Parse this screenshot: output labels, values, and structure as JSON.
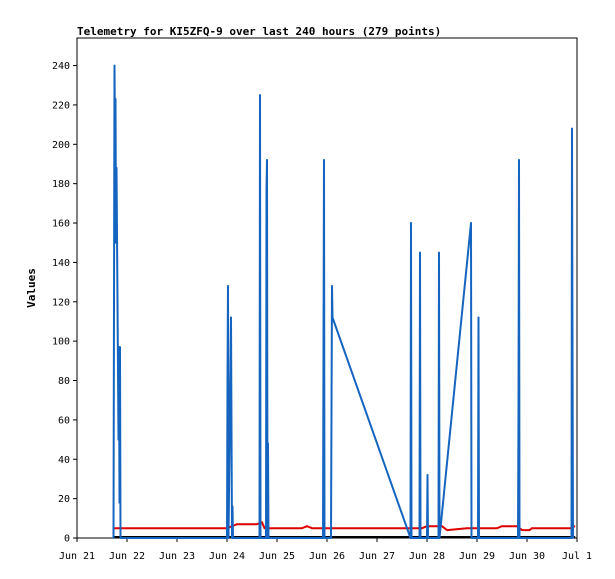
{
  "chart_data": {
    "type": "line",
    "title": "Telemetry for KI5ZFQ-9 over last 240 hours (279 points)",
    "ylabel": "Values",
    "xlabel": "",
    "x_tick_labels": [
      "Jun 21",
      "Jun 22",
      "Jun 23",
      "Jun 24",
      "Jun 25",
      "Jun 26",
      "Jun 27",
      "Jun 28",
      "Jun 29",
      "Jun 30",
      "Jul 1"
    ],
    "y_ticks": [
      0,
      20,
      40,
      60,
      80,
      100,
      120,
      140,
      160,
      180,
      200,
      220,
      240
    ],
    "xlim": [
      0,
      10
    ],
    "ylim": [
      0,
      254
    ],
    "grid": false,
    "colors": {
      "blue_series": "#1565c0",
      "red_series": "#dd0000",
      "black_series": "#000000"
    },
    "series": [
      {
        "color": "#1565c0",
        "points": [
          [
            0.73,
            0
          ],
          [
            0.74,
            120
          ],
          [
            0.75,
            240
          ],
          [
            0.76,
            200
          ],
          [
            0.77,
            223
          ],
          [
            0.78,
            150
          ],
          [
            0.79,
            188
          ],
          [
            0.8,
            155
          ],
          [
            0.81,
            120
          ],
          [
            0.82,
            85
          ],
          [
            0.83,
            50
          ],
          [
            0.84,
            97
          ],
          [
            0.85,
            18
          ],
          [
            0.86,
            97
          ],
          [
            0.87,
            0
          ],
          [
            3.0,
            0
          ],
          [
            3.01,
            80
          ],
          [
            3.02,
            128
          ],
          [
            3.03,
            0
          ],
          [
            3.08,
            112
          ],
          [
            3.09,
            55
          ],
          [
            3.1,
            0
          ],
          [
            3.11,
            16
          ],
          [
            3.12,
            0
          ],
          [
            3.65,
            0
          ],
          [
            3.66,
            225
          ],
          [
            3.67,
            0
          ],
          [
            3.78,
            0
          ],
          [
            3.79,
            177
          ],
          [
            3.8,
            192
          ],
          [
            3.81,
            0
          ],
          [
            3.82,
            48
          ],
          [
            3.83,
            0
          ],
          [
            4.92,
            0
          ],
          [
            4.93,
            97
          ],
          [
            4.94,
            192
          ],
          [
            4.95,
            0
          ],
          [
            5.08,
            0
          ],
          [
            5.09,
            65
          ],
          [
            5.1,
            128
          ],
          [
            5.11,
            112
          ],
          [
            6.67,
            0
          ],
          [
            6.68,
            160
          ],
          [
            6.69,
            0
          ],
          [
            6.85,
            0
          ],
          [
            6.86,
            145
          ],
          [
            6.87,
            0
          ],
          [
            7.0,
            0
          ],
          [
            7.01,
            32
          ],
          [
            7.02,
            0
          ],
          [
            7.23,
            0
          ],
          [
            7.24,
            145
          ],
          [
            7.25,
            0
          ],
          [
            7.88,
            160
          ],
          [
            7.89,
            0
          ],
          [
            8.02,
            0
          ],
          [
            8.03,
            112
          ],
          [
            8.04,
            0
          ],
          [
            8.82,
            0
          ],
          [
            8.83,
            65
          ],
          [
            8.84,
            192
          ],
          [
            8.85,
            0
          ],
          [
            9.89,
            0
          ],
          [
            9.9,
            208
          ],
          [
            9.91,
            97
          ],
          [
            9.92,
            0
          ]
        ]
      },
      {
        "color": "#dd0000",
        "points": [
          [
            0.73,
            5
          ],
          [
            3.0,
            5
          ],
          [
            3.1,
            6
          ],
          [
            3.2,
            7
          ],
          [
            3.6,
            7
          ],
          [
            3.7,
            8
          ],
          [
            3.75,
            5
          ],
          [
            4.5,
            5
          ],
          [
            4.6,
            6
          ],
          [
            4.7,
            5
          ],
          [
            6.9,
            5
          ],
          [
            7.0,
            6
          ],
          [
            7.3,
            6
          ],
          [
            7.4,
            4
          ],
          [
            7.8,
            5
          ],
          [
            8.4,
            5
          ],
          [
            8.5,
            6
          ],
          [
            8.8,
            6
          ],
          [
            8.9,
            4
          ],
          [
            9.05,
            4
          ],
          [
            9.1,
            5
          ],
          [
            9.9,
            5
          ],
          [
            9.95,
            6
          ]
        ]
      },
      {
        "color": "#000000",
        "points": [
          [
            0.73,
            0.5
          ],
          [
            9.95,
            0.5
          ]
        ]
      }
    ]
  }
}
